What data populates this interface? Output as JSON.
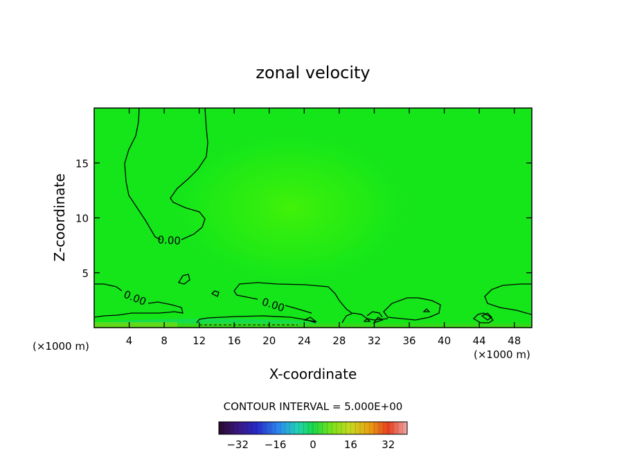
{
  "chart_data": {
    "type": "heatmap",
    "title": "zonal velocity",
    "xlabel": "X-coordinate",
    "ylabel": "Z-coordinate",
    "xlim": [
      0,
      50
    ],
    "ylim": [
      0,
      20
    ],
    "x_ticks": [
      4,
      8,
      12,
      16,
      20,
      24,
      28,
      32,
      36,
      40,
      44,
      48
    ],
    "y_ticks": [
      5,
      10,
      15
    ],
    "x_unit_left": "(×1000 m)",
    "x_unit_right": "(×1000 m)",
    "contour_interval_text": "CONTOUR INTERVAL = 5.000E+00",
    "contour_label": "0.00",
    "colorbar": {
      "range": [
        -40,
        40
      ],
      "ticks": [
        -32,
        -16,
        0,
        16,
        32
      ],
      "tick_labels": [
        "−32",
        "−16",
        "0",
        "16",
        "32"
      ]
    },
    "colors": {
      "field_main": "#14e61a",
      "field_high": "#3ef20a",
      "field_low": "#12d672",
      "contour": "#000000"
    }
  }
}
